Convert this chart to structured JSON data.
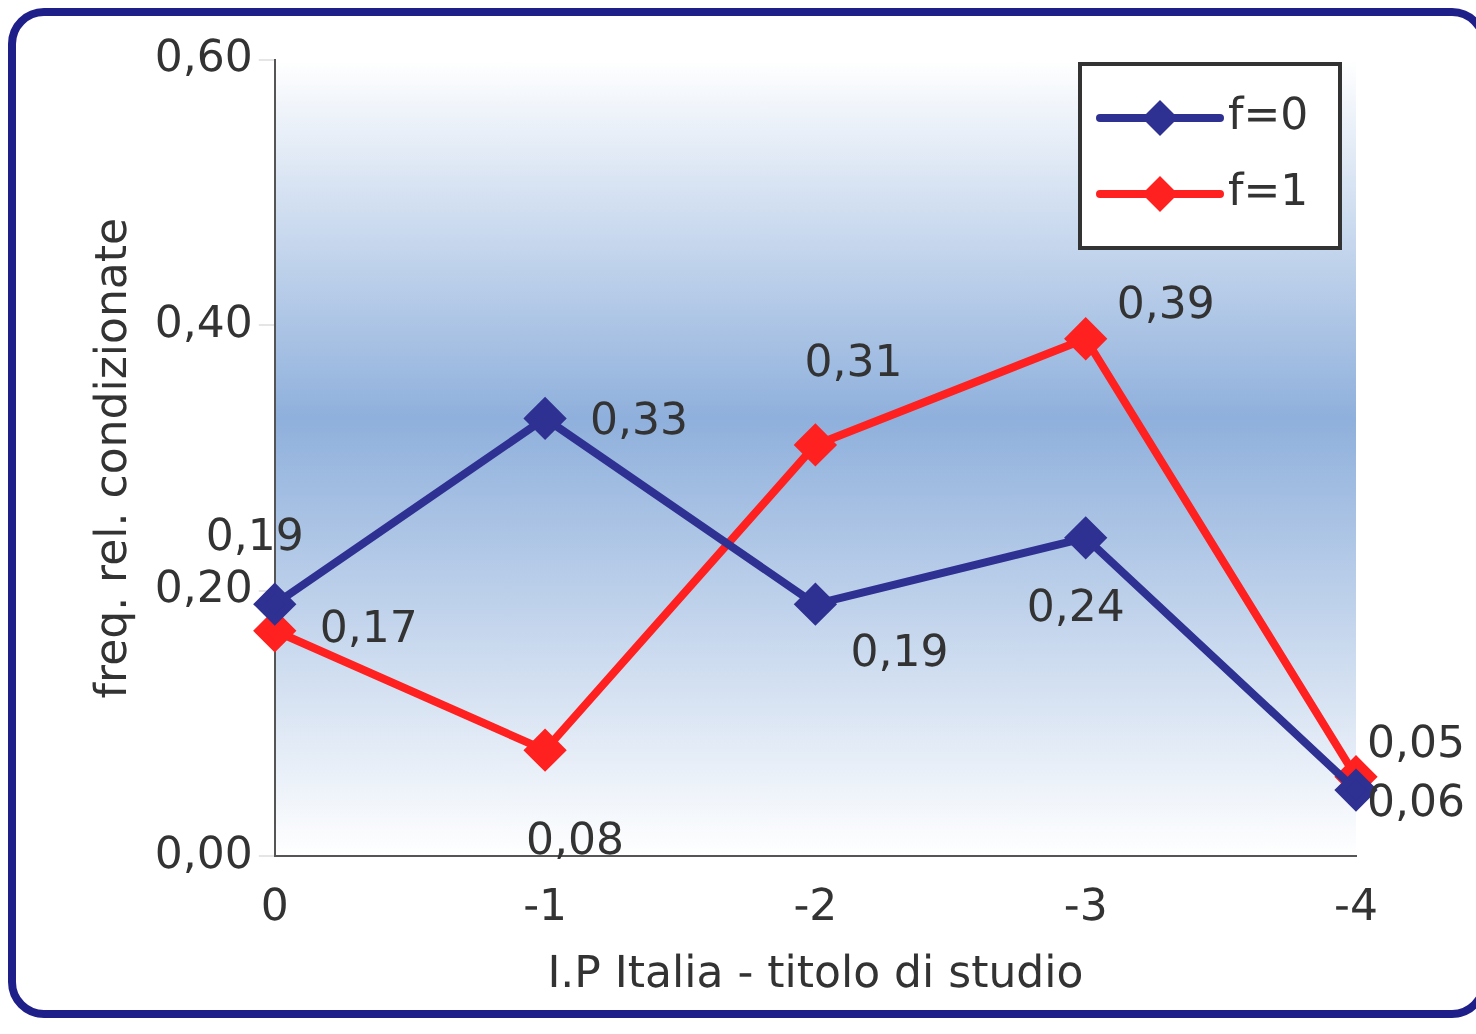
{
  "chart_data": {
    "type": "line",
    "xlabel": "I.P Italia - titolo di studio",
    "ylabel": "freq. rel. condizionate",
    "categories": [
      "0",
      "-1",
      "-2",
      "-3",
      "-4"
    ],
    "series": [
      {
        "name": "f=0",
        "color": "#2e3192",
        "values": [
          0.19,
          0.33,
          0.19,
          0.24,
          0.05
        ],
        "value_labels": [
          "0,19",
          "0,33",
          "0,19",
          "0,24",
          "0,05"
        ]
      },
      {
        "name": "f=1",
        "color": "#ff2020",
        "values": [
          0.17,
          0.08,
          0.31,
          0.39,
          0.06
        ],
        "value_labels": [
          "0,17",
          "0,08",
          "0,31",
          "0,39",
          "0,06"
        ]
      }
    ],
    "ylim": [
      0,
      0.6
    ],
    "yticks": [
      {
        "value": 0,
        "label": "0,00"
      },
      {
        "value": 0.2,
        "label": "0,20"
      },
      {
        "value": 0.4,
        "label": "0,40"
      },
      {
        "value": 0.6,
        "label": "0,60"
      }
    ],
    "grid": false,
    "legend": "top right",
    "marker": "diamond",
    "line_style": "solid"
  }
}
